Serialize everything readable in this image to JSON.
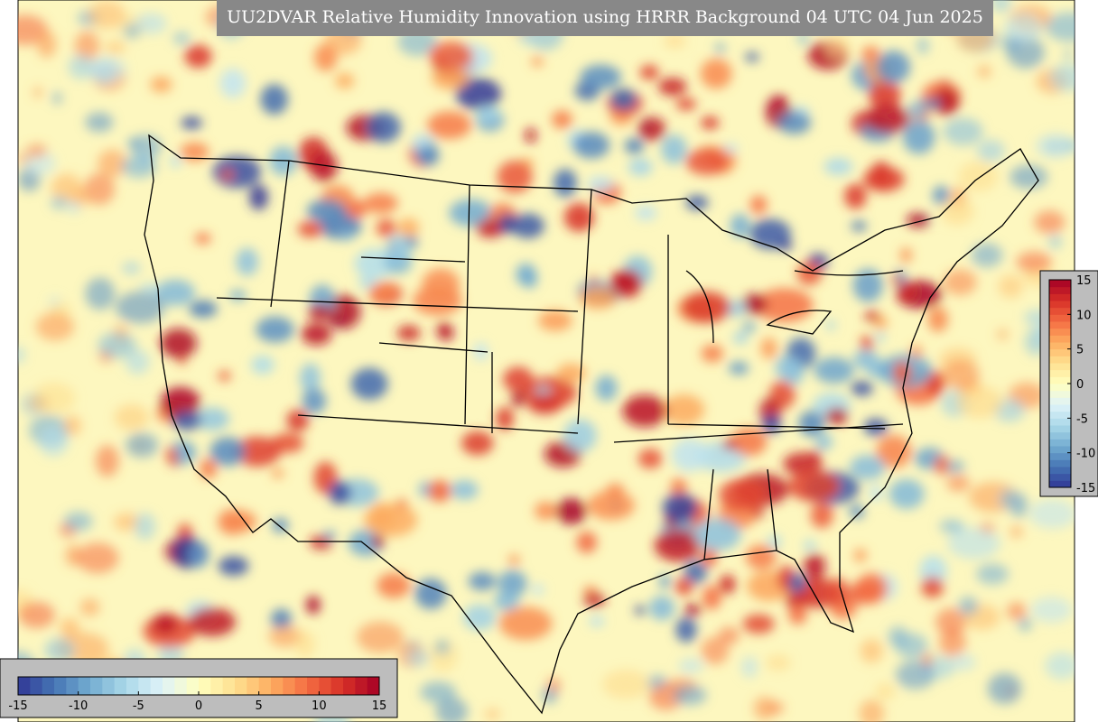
{
  "title": "UU2DVAR Relative Humidity Innovation using HRRR Background 04 UTC 04 Jun 2025",
  "colormap": [
    "#313695",
    "#4575b4",
    "#74add1",
    "#abd9e9",
    "#e0f3f8",
    "#ffffbf",
    "#fee090",
    "#fdae61",
    "#f46d43",
    "#d73027",
    "#a50026"
  ],
  "horizontal_colorbar": {
    "range": [
      -15,
      15
    ],
    "ticks": [
      -15,
      -10,
      -5,
      0,
      5,
      10,
      15
    ]
  },
  "vertical_colorbar": {
    "range": [
      -15,
      15
    ],
    "ticks": [
      -15,
      -10,
      -5,
      0,
      5,
      10,
      15
    ]
  }
}
